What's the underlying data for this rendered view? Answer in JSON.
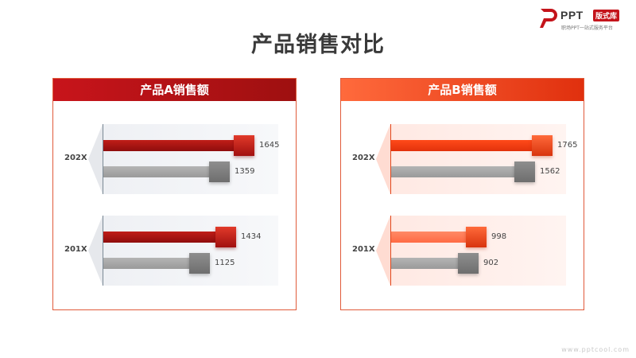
{
  "title": "产品销售对比",
  "logo": {
    "brand": "PPT",
    "badge": "版式库",
    "tagline": "职场PPT一站式服务平台"
  },
  "watermark": "www.pptcool.com",
  "colors": {
    "panel_a": "#c8141b",
    "panel_b": "#ff5a2a",
    "prior_year": "#8a8a8a"
  },
  "chart_data": [
    {
      "type": "bar",
      "orientation": "horizontal",
      "title": "产品A销售额",
      "categories": [
        "202X",
        "201X"
      ],
      "series": [
        {
          "values": [
            1645,
            1434
          ]
        },
        {
          "values": [
            1359,
            1125
          ]
        }
      ],
      "xlim": [
        0,
        2000
      ],
      "grid": false
    },
    {
      "type": "bar",
      "orientation": "horizontal",
      "title": "产品B销售额",
      "categories": [
        "202X",
        "201X"
      ],
      "series": [
        {
          "values": [
            1765,
            998
          ]
        },
        {
          "values": [
            1562,
            902
          ]
        }
      ],
      "xlim": [
        0,
        2000
      ],
      "grid": false
    }
  ]
}
